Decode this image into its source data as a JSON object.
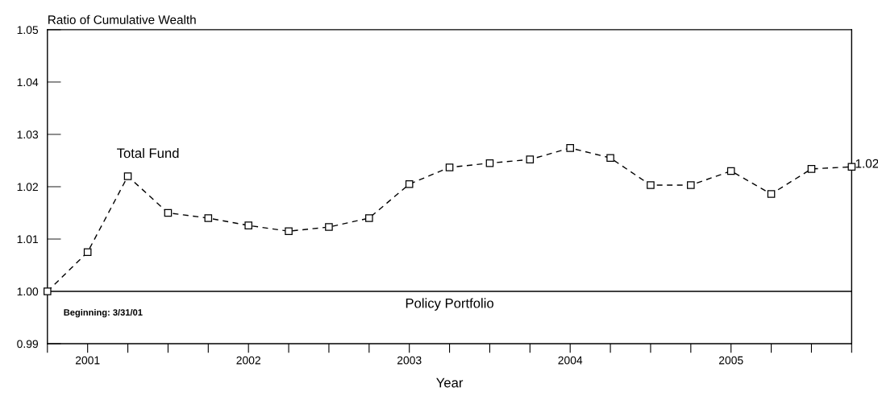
{
  "chart_data": {
    "type": "line",
    "ylabel": "Ratio of Cumulative Wealth",
    "xlabel": "Year",
    "x": [
      2001.25,
      2001.5,
      2001.75,
      2002.0,
      2002.25,
      2002.5,
      2002.75,
      2003.0,
      2003.25,
      2003.5,
      2003.75,
      2004.0,
      2004.25,
      2004.5,
      2004.75,
      2005.0,
      2005.25,
      2005.5,
      2005.75,
      2006.0,
      2006.25
    ],
    "series": [
      {
        "name": "Total Fund",
        "color": "#000000",
        "values": [
          1.0,
          1.0075,
          1.022,
          1.015,
          1.014,
          1.0126,
          1.0115,
          1.0123,
          1.014,
          1.0205,
          1.0237,
          1.0245,
          1.0252,
          1.0274,
          1.0255,
          1.0203,
          1.0203,
          1.023,
          1.0186,
          1.0234,
          1.0238
        ]
      }
    ],
    "marker": "square",
    "line_style": "dashed",
    "grid": false,
    "legend": false,
    "xlim": [
      2001.25,
      2006.25
    ],
    "xticks": [
      {
        "value": 2001.25,
        "label": null
      },
      {
        "value": 2001.5,
        "label": "2001"
      },
      {
        "value": 2001.75,
        "label": null
      },
      {
        "value": 2002.0,
        "label": null
      },
      {
        "value": 2002.25,
        "label": null
      },
      {
        "value": 2002.5,
        "label": "2002"
      },
      {
        "value": 2002.75,
        "label": null
      },
      {
        "value": 2003.0,
        "label": null
      },
      {
        "value": 2003.25,
        "label": null
      },
      {
        "value": 2003.5,
        "label": "2003"
      },
      {
        "value": 2003.75,
        "label": null
      },
      {
        "value": 2004.0,
        "label": null
      },
      {
        "value": 2004.25,
        "label": null
      },
      {
        "value": 2004.5,
        "label": "2004"
      },
      {
        "value": 2004.75,
        "label": null
      },
      {
        "value": 2005.0,
        "label": null
      },
      {
        "value": 2005.25,
        "label": null
      },
      {
        "value": 2005.5,
        "label": "2005"
      },
      {
        "value": 2005.75,
        "label": null
      },
      {
        "value": 2006.0,
        "label": null
      },
      {
        "value": 2006.25,
        "label": null
      }
    ],
    "ylim": [
      0.99,
      1.05
    ],
    "yticks": [
      {
        "value": 0.99,
        "label": "0.99"
      },
      {
        "value": 1.0,
        "label": "1.00"
      },
      {
        "value": 1.01,
        "label": "1.01"
      },
      {
        "value": 1.02,
        "label": "1.02"
      },
      {
        "value": 1.03,
        "label": "1.03"
      },
      {
        "value": 1.04,
        "label": "1.04"
      },
      {
        "value": 1.05,
        "label": "1.05"
      }
    ],
    "ref_lines": [
      {
        "axis": "y",
        "value": 1.0,
        "label": "Policy Portfolio",
        "color": "#000000"
      }
    ],
    "annotations": [
      {
        "text": "1.02",
        "x": 2006.25,
        "y": 1.0238
      },
      "Beginning: 3/31/01"
    ]
  }
}
